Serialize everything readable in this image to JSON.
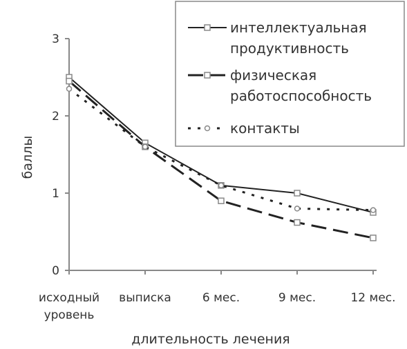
{
  "chart_data": {
    "type": "line",
    "categories": [
      [
        "исходный",
        "уровень"
      ],
      [
        "выписка"
      ],
      [
        "6 мес."
      ],
      [
        "9 мес."
      ],
      [
        "12 мес."
      ]
    ],
    "series": [
      {
        "name": [
          "интеллектуальная",
          "продуктивность"
        ],
        "values": [
          2.5,
          1.65,
          1.1,
          1.0,
          0.75
        ],
        "style": "solid",
        "marker": "square"
      },
      {
        "name": [
          "физическая",
          "работоспособность"
        ],
        "values": [
          2.45,
          1.6,
          0.9,
          0.62,
          0.42
        ],
        "style": "dashed",
        "marker": "square"
      },
      {
        "name": [
          "контакты"
        ],
        "values": [
          2.35,
          1.6,
          1.1,
          0.8,
          0.78
        ],
        "style": "dotted",
        "marker": "circle"
      }
    ],
    "title": "",
    "xlabel": "длительность лечения",
    "ylabel": "баллы",
    "ylim": [
      0,
      3
    ],
    "yticks": [
      0,
      1,
      2,
      3
    ],
    "grid": false,
    "legend": "top-right",
    "colors": {
      "series": "#222222",
      "marker_fill": "#ffffff",
      "marker_stroke": "#888888",
      "axis": "#888888",
      "legend_border": "#888888"
    }
  }
}
